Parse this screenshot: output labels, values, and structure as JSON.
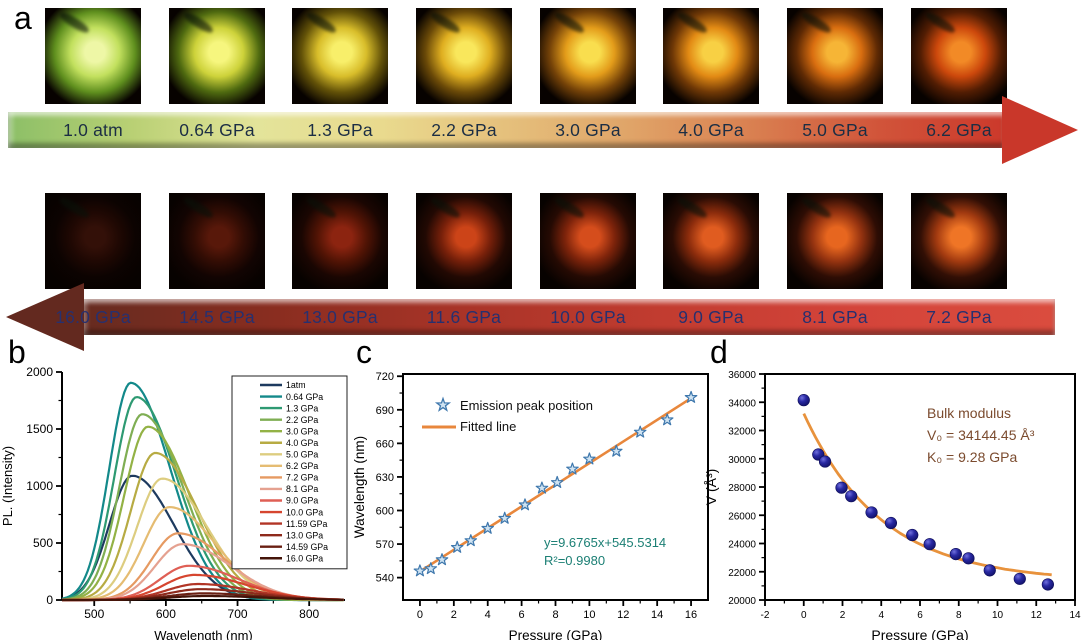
{
  "figure": {
    "panel_labels": {
      "a": "a",
      "b": "b",
      "c": "c",
      "d": "d"
    }
  },
  "panel_a": {
    "rows": [
      {
        "name": "compression-row",
        "direction": "right",
        "labels": [
          "1.0 atm",
          "0.64 GPa",
          "1.3 GPa",
          "2.2 GPa",
          "3.0 GPa",
          "4.0 GPa",
          "5.0 GPa",
          "6.2 GPa"
        ],
        "label_color": "#1c2e44",
        "arrow_gradient": [
          "#8cbf67",
          "#b9d074",
          "#e3e49a",
          "#e9da8e",
          "#e5c07c",
          "#e0a468",
          "#d97f50",
          "#d1543a",
          "#cc392b"
        ],
        "arrow_head_color": "#c9372a",
        "photo_colors": [
          [
            "#eef7a6",
            "#c2e05e",
            "#5f8f1e"
          ],
          [
            "#f6f67e",
            "#cdd23a",
            "#4f6a10"
          ],
          [
            "#f8ef6a",
            "#d8bd2a",
            "#635208"
          ],
          [
            "#f9e75c",
            "#dfae20",
            "#6b4a08"
          ],
          [
            "#f9de4e",
            "#e39c1a",
            "#744208"
          ],
          [
            "#f8d044",
            "#e28a14",
            "#6f3806"
          ],
          [
            "#f6b536",
            "#d96e10",
            "#5f2a04"
          ],
          [
            "#f28a26",
            "#cc480c",
            "#521d03"
          ]
        ]
      },
      {
        "name": "decompression-row",
        "direction": "left",
        "labels": [
          "16.0 GPa",
          "14.5 GPa",
          "13.0 GPa",
          "11.6 GPa",
          "10.0 GPa",
          "9.0 GPa",
          "8.1 GPa",
          "7.2 GPa"
        ],
        "label_color": "#27306f",
        "arrow_gradient": [
          "#662b20",
          "#8a2d20",
          "#aa3428",
          "#c23c30",
          "#d4443a",
          "#da4c3e"
        ],
        "arrow_head_color": "#63291f",
        "photo_colors": [
          [
            "#331008",
            "#1f0803",
            "#0c0301"
          ],
          [
            "#58180a",
            "#330d04",
            "#120402"
          ],
          [
            "#8c2410",
            "#521405",
            "#1a0602"
          ],
          [
            "#cc4418",
            "#77200a",
            "#220903"
          ],
          [
            "#d54d1c",
            "#7f240b",
            "#250a03"
          ],
          [
            "#e05c20",
            "#8c2c0c",
            "#2a0c04"
          ],
          [
            "#e7661f",
            "#953310",
            "#2e0d04"
          ],
          [
            "#ef7526",
            "#a23a10",
            "#320f05"
          ]
        ]
      }
    ]
  },
  "chart_data": [
    {
      "panel": "b",
      "type": "line",
      "xlabel": "Wavelength (nm)",
      "ylabel": "PL. (Intensity)",
      "xlim": [
        455,
        850
      ],
      "ylim": [
        0,
        2000
      ],
      "xticks": [
        500,
        600,
        700,
        800
      ],
      "xminor": [
        550,
        650,
        750
      ],
      "yticks": [
        0,
        500,
        1000,
        1500,
        2000
      ],
      "yminor": [
        250,
        750,
        1250,
        1750
      ],
      "legend_position": "upper right",
      "grid": false,
      "series": [
        {
          "name": "1atm",
          "color": "#1d3a5f",
          "peak_nm": 553,
          "peak_intensity": 1090,
          "sigma_left": 32,
          "sigma_right": 58
        },
        {
          "name": "0.64 GPa",
          "color": "#13898a",
          "peak_nm": 551,
          "peak_intensity": 1905,
          "sigma_left": 30,
          "sigma_right": 55
        },
        {
          "name": "1.3 GPa",
          "color": "#2e9a72",
          "peak_nm": 559,
          "peak_intensity": 1780,
          "sigma_left": 31,
          "sigma_right": 56
        },
        {
          "name": "2.2 GPa",
          "color": "#7fae53",
          "peak_nm": 567,
          "peak_intensity": 1630,
          "sigma_left": 32,
          "sigma_right": 57
        },
        {
          "name": "3.0 GPa",
          "color": "#93b245",
          "peak_nm": 575,
          "peak_intensity": 1520,
          "sigma_left": 33,
          "sigma_right": 58
        },
        {
          "name": "4.0 GPa",
          "color": "#b7ab43",
          "peak_nm": 585,
          "peak_intensity": 1290,
          "sigma_left": 34,
          "sigma_right": 60
        },
        {
          "name": "5.0 GPa",
          "color": "#ddcd80",
          "peak_nm": 595,
          "peak_intensity": 1065,
          "sigma_left": 35,
          "sigma_right": 62
        },
        {
          "name": "6.2 GPa",
          "color": "#e5bc72",
          "peak_nm": 605,
          "peak_intensity": 815,
          "sigma_left": 36,
          "sigma_right": 64
        },
        {
          "name": "7.2 GPa",
          "color": "#e69a62",
          "peak_nm": 617,
          "peak_intensity": 585,
          "sigma_left": 37,
          "sigma_right": 66
        },
        {
          "name": "8.1 GPa",
          "color": "#e5a190",
          "peak_nm": 623,
          "peak_intensity": 490,
          "sigma_left": 38,
          "sigma_right": 68
        },
        {
          "name": "9.0 GPa",
          "color": "#df5f55",
          "peak_nm": 632,
          "peak_intensity": 300,
          "sigma_left": 40,
          "sigma_right": 70
        },
        {
          "name": "10.0 GPa",
          "color": "#d6452f",
          "peak_nm": 640,
          "peak_intensity": 220,
          "sigma_left": 42,
          "sigma_right": 72
        },
        {
          "name": "11.59 GPa",
          "color": "#b23526",
          "peak_nm": 645,
          "peak_intensity": 140,
          "sigma_left": 44,
          "sigma_right": 74
        },
        {
          "name": "13.0 GPa",
          "color": "#8e2a1c",
          "peak_nm": 649,
          "peak_intensity": 95,
          "sigma_left": 46,
          "sigma_right": 76
        },
        {
          "name": "14.59 GPa",
          "color": "#6a1f12",
          "peak_nm": 652,
          "peak_intensity": 58,
          "sigma_left": 48,
          "sigma_right": 78
        },
        {
          "name": "16.0 GPa",
          "color": "#441409",
          "peak_nm": 655,
          "peak_intensity": 35,
          "sigma_left": 50,
          "sigma_right": 80
        }
      ]
    },
    {
      "panel": "c",
      "type": "scatter",
      "xlabel": "Pressure (GPa)",
      "ylabel": "Wavelength (nm)",
      "xlim": [
        -1,
        17
      ],
      "ylim": [
        520,
        722
      ],
      "xticks": [
        0,
        2,
        4,
        6,
        8,
        10,
        12,
        14,
        16
      ],
      "xminor": [
        1,
        3,
        5,
        7,
        9,
        11,
        13,
        15
      ],
      "yticks": [
        540,
        570,
        600,
        630,
        660,
        690,
        720
      ],
      "yminor": [
        555,
        585,
        615,
        645,
        675,
        705
      ],
      "legend": [
        {
          "label": "Emission peak position",
          "marker": "star"
        },
        {
          "label": "Fitted line",
          "marker": "line"
        }
      ],
      "points": {
        "pressure": [
          0,
          0.64,
          1.3,
          2.2,
          3.0,
          4.0,
          5.0,
          6.2,
          7.2,
          8.1,
          9.0,
          10.0,
          11.59,
          13.0,
          14.59,
          16.0
        ],
        "wavelength": [
          546,
          548,
          556,
          567,
          573,
          584,
          593,
          605,
          620,
          625,
          637,
          646,
          653,
          670,
          681,
          701
        ]
      },
      "fit": {
        "slope": 9.6765,
        "intercept": 545.5314,
        "p_start": 0,
        "p_end": 16.2
      },
      "annotation": {
        "line1": "y=9.6765x+545.5314",
        "line2": "R²=0.9980",
        "color": "#1b7f74"
      },
      "marker_fill": "#cfe3f2",
      "marker_stroke": "#3f78ad",
      "fit_color": "#e8873c"
    },
    {
      "panel": "d",
      "type": "scatter",
      "xlabel": "Pressure (GPa)",
      "ylabel": "V (Å³)",
      "xlim": [
        -2,
        14
      ],
      "ylim": [
        20000,
        36000
      ],
      "xticks": [
        -2,
        0,
        2,
        4,
        6,
        8,
        10,
        12,
        14
      ],
      "xminor": [
        -1,
        1,
        3,
        5,
        7,
        9,
        11,
        13
      ],
      "yticks": [
        20000,
        22000,
        24000,
        26000,
        28000,
        30000,
        32000,
        34000,
        36000
      ],
      "yminor": [
        21000,
        23000,
        25000,
        27000,
        29000,
        31000,
        33000,
        35000
      ],
      "points": {
        "pressure": [
          0,
          0.75,
          1.1,
          1.95,
          2.45,
          3.5,
          4.5,
          5.6,
          6.5,
          7.85,
          8.5,
          9.6,
          11.15,
          12.6
        ],
        "volume": [
          34150,
          30300,
          29800,
          27950,
          27350,
          26200,
          25450,
          24600,
          23950,
          23250,
          22950,
          22100,
          21500,
          21100
        ]
      },
      "fit": {
        "model": "exponential",
        "v_inf": 21300,
        "amplitude": 11900,
        "tau": 4.0,
        "p_start": 0,
        "p_end": 12.8
      },
      "annotation": {
        "line1": "Bulk modulus",
        "line2": "V₀ = 34144.45 Å³",
        "line3": "K₀ = 9.28 GPa",
        "color": "#7b4b2e"
      },
      "marker_fill": "#23238f",
      "fit_color": "#e8923c"
    }
  ]
}
